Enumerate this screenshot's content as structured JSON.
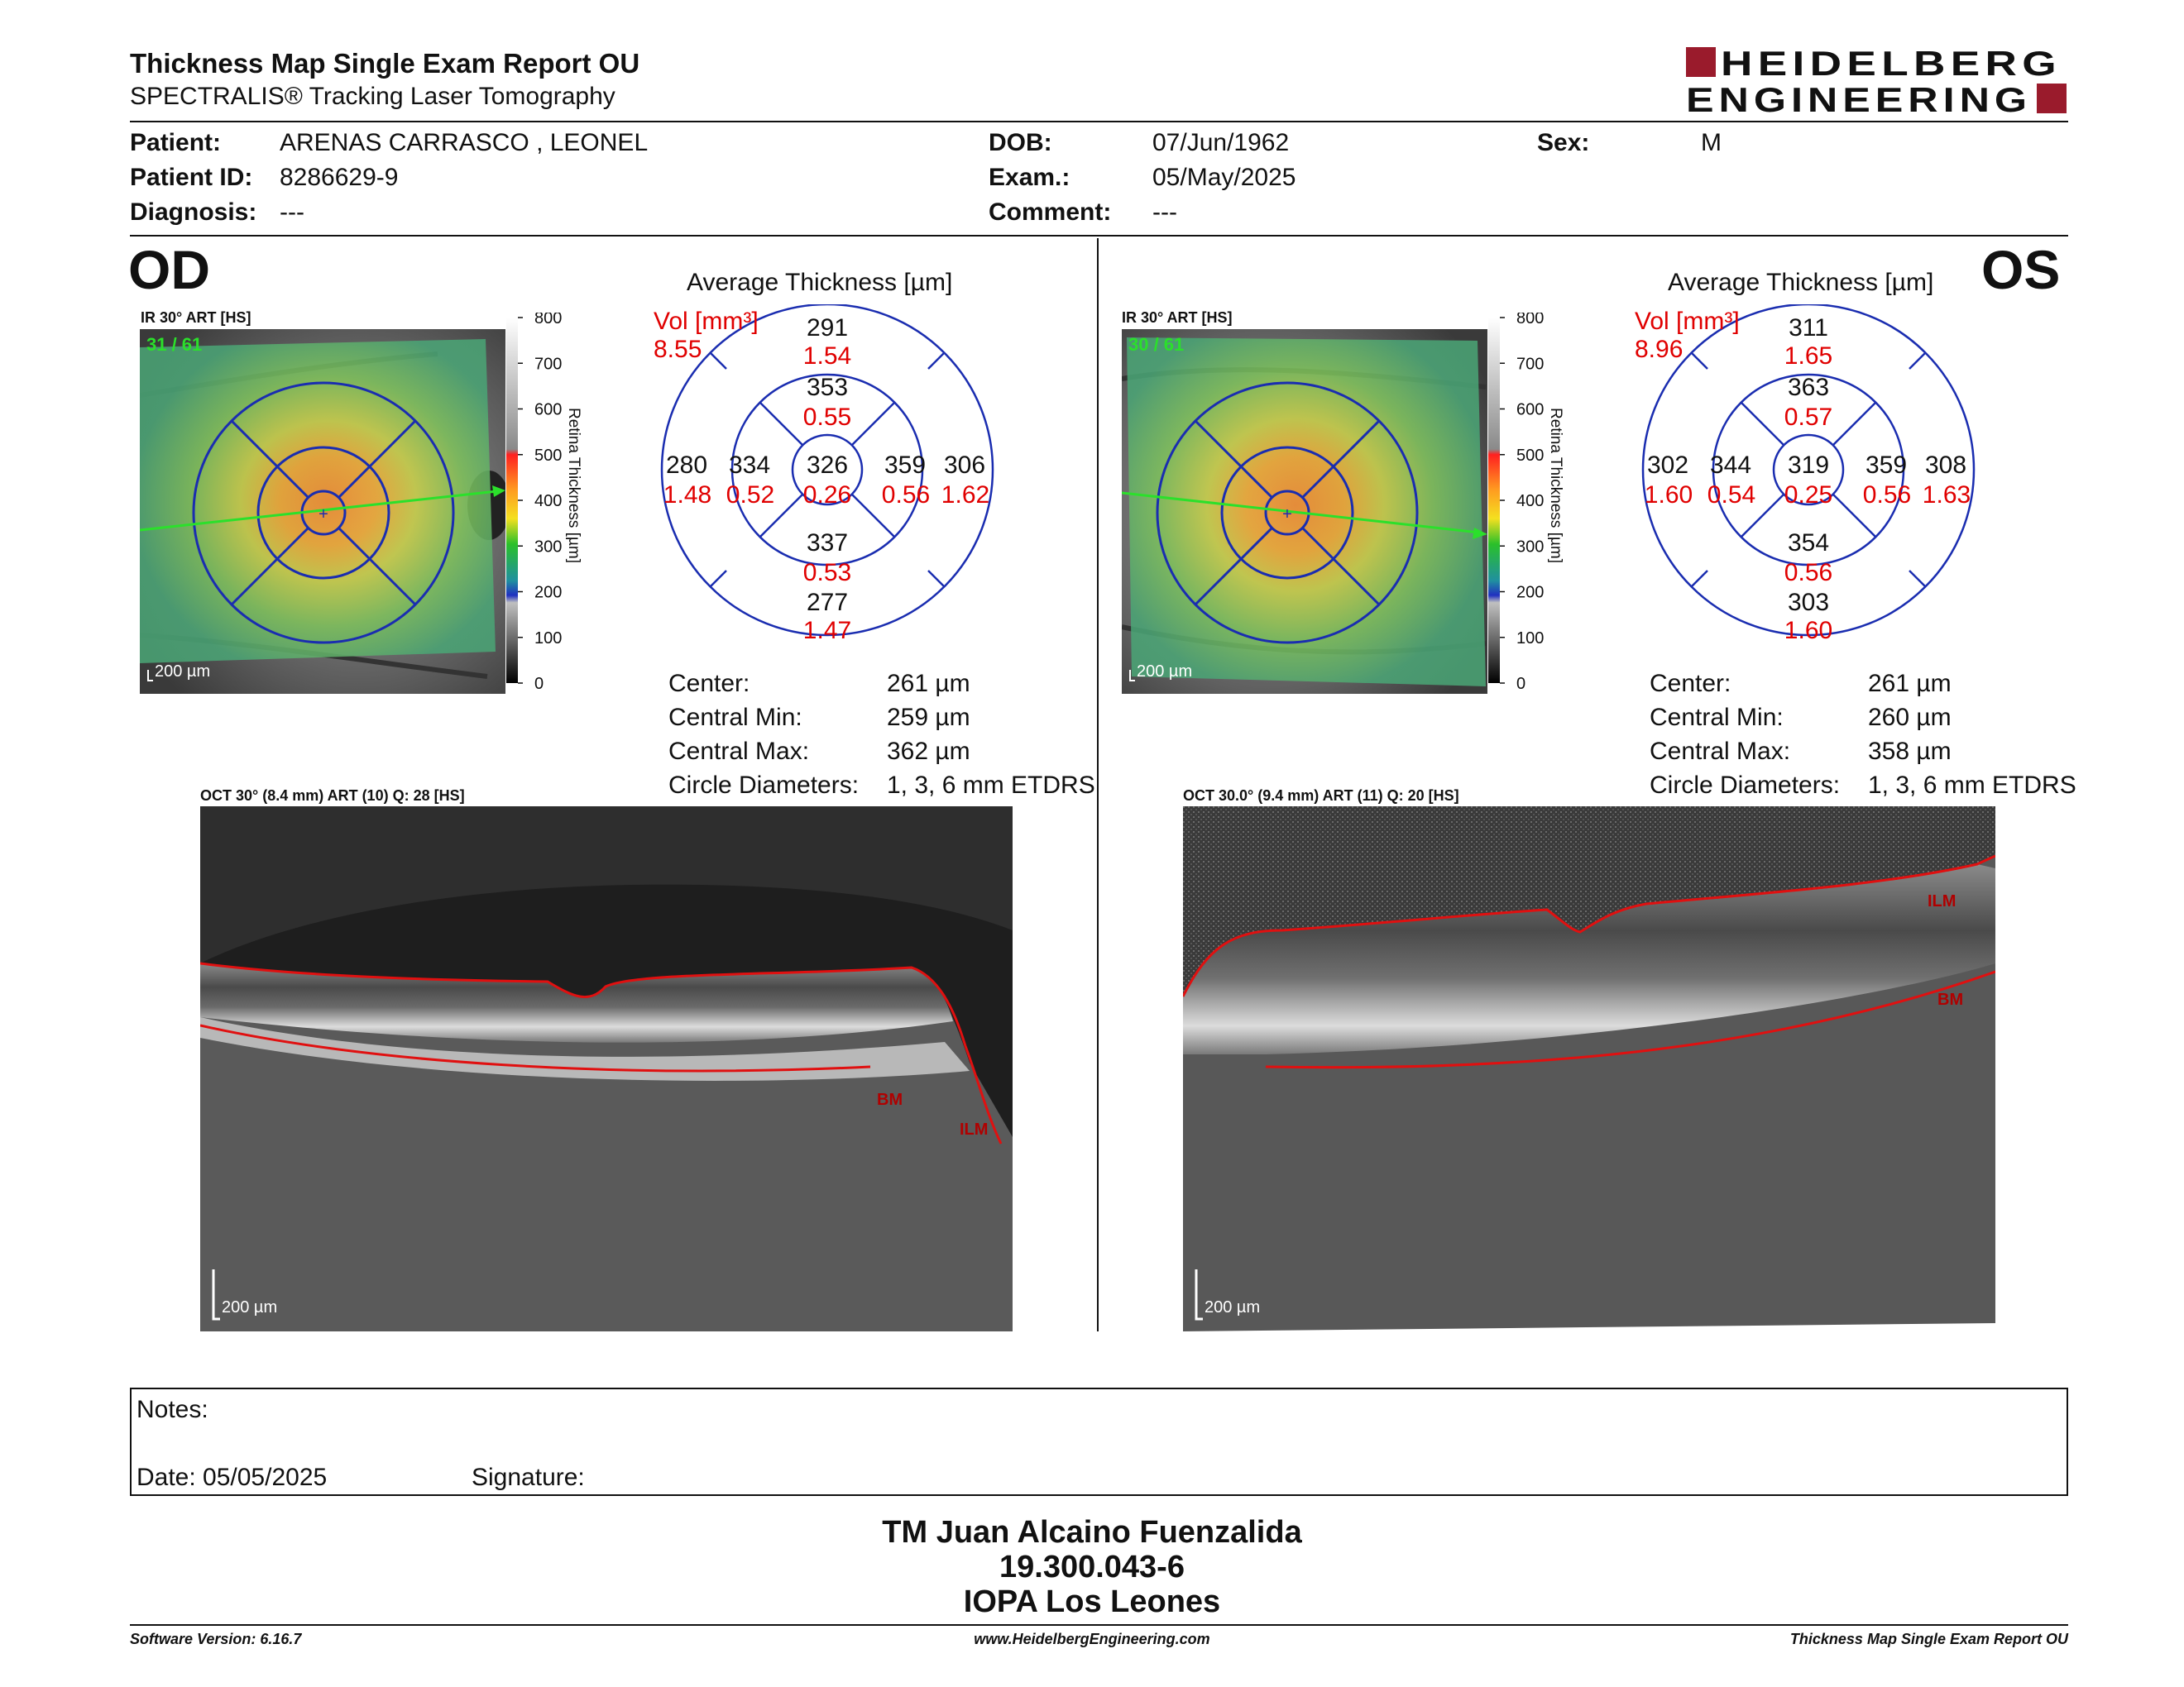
{
  "report": {
    "title": "Thickness Map Single Exam Report OU",
    "subtitle": "SPECTRALIS® Tracking Laser Tomography",
    "logo_line1": "HEIDELBERG",
    "logo_line2": "ENGINEERING",
    "brand_color": "#9a1b2c"
  },
  "patient": {
    "patient_label": "Patient:",
    "patient_value": "ARENAS CARRASCO , LEONEL",
    "id_label": "Patient ID:",
    "id_value": "8286629-9",
    "diagnosis_label": "Diagnosis:",
    "diagnosis_value": "---",
    "dob_label": "DOB:",
    "dob_value": "07/Jun/1962",
    "exam_label": "Exam.:",
    "exam_value": "05/May/2025",
    "comment_label": "Comment:",
    "comment_value": "---",
    "sex_label": "Sex:",
    "sex_value": "M"
  },
  "od": {
    "eye": "OD",
    "ir_caption": "IR 30° ART [HS]",
    "frame": "31 / 61",
    "scale": "200 µm",
    "colorbar_ticks": [
      "800",
      "700",
      "600",
      "500",
      "400",
      "300",
      "200",
      "100",
      "0"
    ],
    "colorbar_label": "Retina Thickness [µm]",
    "grid_title": "Average Thickness [µm]",
    "vol_label": "Vol [mm³]",
    "vol_total": "8.55",
    "grid": {
      "outer_sup": {
        "t": "291",
        "v": "1.54"
      },
      "inner_sup": {
        "t": "353",
        "v": "0.55"
      },
      "outer_temp": {
        "t": "280",
        "v": "1.48"
      },
      "inner_temp": {
        "t": "334",
        "v": "0.52"
      },
      "center": {
        "t": "326",
        "v": "0.26"
      },
      "inner_nas": {
        "t": "359",
        "v": "0.56"
      },
      "outer_nas": {
        "t": "306",
        "v": "1.62"
      },
      "inner_inf": {
        "t": "337",
        "v": "0.53"
      },
      "outer_inf": {
        "t": "277",
        "v": "1.47"
      }
    },
    "stats": {
      "center_label": "Center:",
      "center_value": "261 µm",
      "min_label": "Central Min:",
      "min_value": "259 µm",
      "max_label": "Central Max:",
      "max_value": "362 µm",
      "diam_label": "Circle Diameters:",
      "diam_value": "1, 3, 6 mm ETDRS"
    },
    "oct_caption": "OCT 30° (8.4 mm) ART (10) Q: 28 [HS]",
    "oct_scale": "200 µm",
    "layer_top": "ILM",
    "layer_bottom": "BM"
  },
  "os": {
    "eye": "OS",
    "ir_caption": "IR 30° ART [HS]",
    "frame": "30 / 61",
    "scale": "200 µm",
    "colorbar_ticks": [
      "800",
      "700",
      "600",
      "500",
      "400",
      "300",
      "200",
      "100",
      "0"
    ],
    "colorbar_label": "Retina Thickness [µm]",
    "grid_title": "Average Thickness [µm]",
    "vol_label": "Vol [mm³]",
    "vol_total": "8.96",
    "grid": {
      "outer_sup": {
        "t": "311",
        "v": "1.65"
      },
      "inner_sup": {
        "t": "363",
        "v": "0.57"
      },
      "outer_temp": {
        "t": "302",
        "v": "1.60"
      },
      "inner_temp": {
        "t": "344",
        "v": "0.54"
      },
      "center": {
        "t": "319",
        "v": "0.25"
      },
      "inner_nas": {
        "t": "359",
        "v": "0.56"
      },
      "outer_nas": {
        "t": "308",
        "v": "1.63"
      },
      "inner_inf": {
        "t": "354",
        "v": "0.56"
      },
      "outer_inf": {
        "t": "303",
        "v": "1.60"
      }
    },
    "stats": {
      "center_label": "Center:",
      "center_value": "261 µm",
      "min_label": "Central Min:",
      "min_value": "260 µm",
      "max_label": "Central Max:",
      "max_value": "358 µm",
      "diam_label": "Circle Diameters:",
      "diam_value": "1, 3, 6 mm ETDRS"
    },
    "oct_caption": "OCT 30.0° (9.4 mm) ART (11) Q: 20 [HS]",
    "oct_scale": "200 µm",
    "layer_top": "ILM",
    "layer_bottom": "BM"
  },
  "notes": {
    "notes_label": "Notes:",
    "date_label": "Date: 05/05/2025",
    "signature_label": "Signature:"
  },
  "signer": {
    "name": "TM Juan Alcaino Fuenzalida",
    "id": "19.300.043-6",
    "institution": "IOPA Los Leones"
  },
  "footer": {
    "software": "Software Version: 6.16.7",
    "website": "www.HeidelbergEngineering.com",
    "report_name": "Thickness Map Single Exam Report OU"
  }
}
